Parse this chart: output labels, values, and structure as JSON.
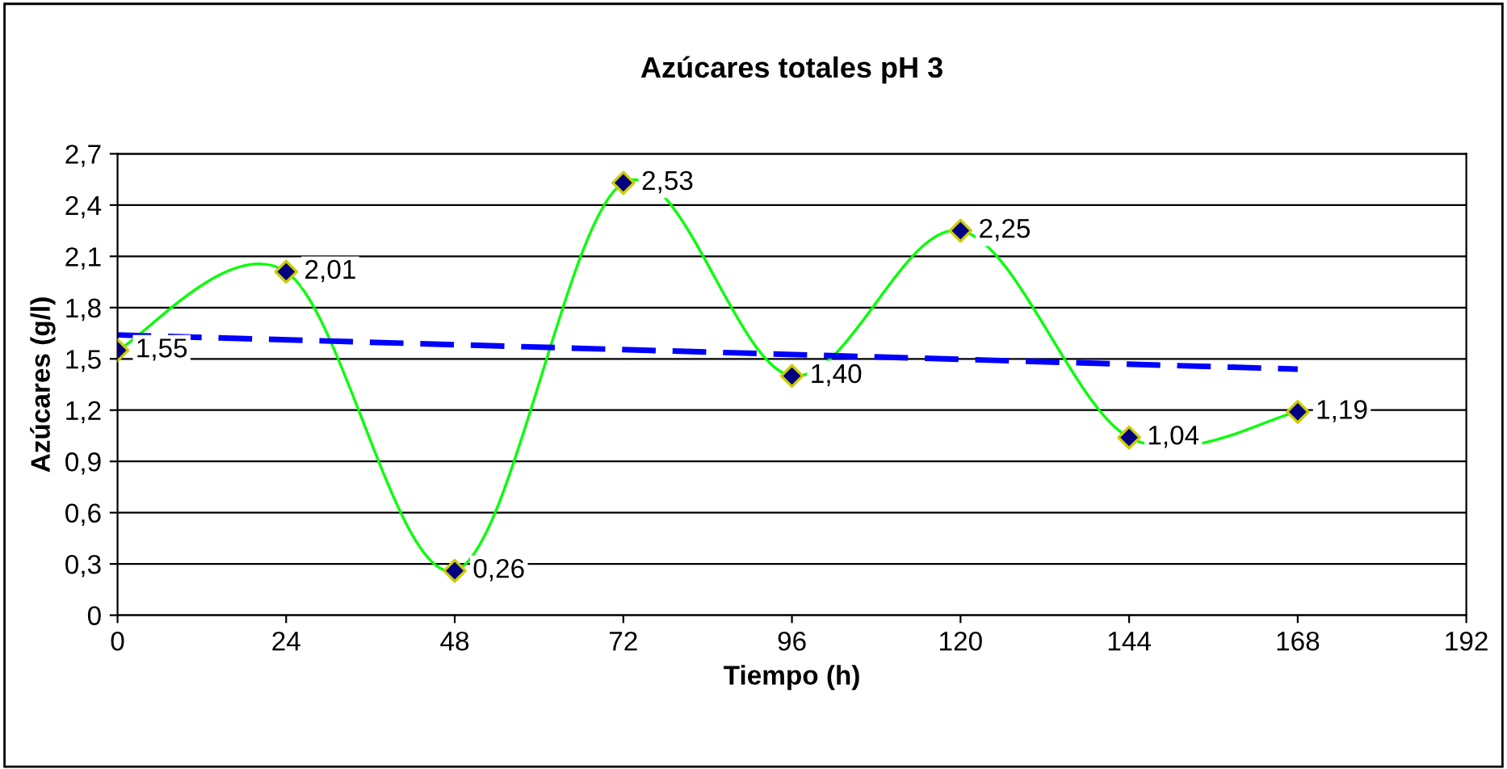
{
  "chart_data": {
    "type": "line",
    "title": "Azúcares totales pH 3",
    "xlabel": "Tiempo (h)",
    "ylabel": "Azúcares (g/l)",
    "x": [
      0,
      24,
      48,
      72,
      96,
      120,
      144,
      168
    ],
    "series": [
      {
        "color": "#00ff00",
        "colors": [
          "#000080",
          "#000080",
          "#000080",
          "#000080",
          "#000080",
          "#000080",
          "#000080",
          "#000080"
        ],
        "marker": "diamond",
        "line_style": "solid",
        "values": [
          1.55,
          2.01,
          0.26,
          2.53,
          1.4,
          2.25,
          1.04,
          1.19
        ],
        "value_labels": [
          "1,55",
          "2,01",
          "0,26",
          "2,53",
          "1,40",
          "2,25",
          "1,04",
          "1,19"
        ]
      },
      {
        "color": "#0000ff",
        "marker": "none",
        "line_style": "dashed",
        "x": [
          0,
          168
        ],
        "values": [
          1.64,
          1.44
        ]
      }
    ],
    "xlim": [
      0,
      192
    ],
    "xticks": [
      0,
      24,
      48,
      72,
      96,
      120,
      144,
      168,
      192
    ],
    "ylim": [
      0,
      2.7
    ],
    "yticks": [
      0,
      {
        "value": 0.3,
        "label": "0,3"
      },
      {
        "value": 0.6,
        "label": "0,6"
      },
      {
        "value": 0.9,
        "label": "0,9"
      },
      {
        "value": 1.2,
        "label": "1,2"
      },
      {
        "value": 1.5,
        "label": "1,5"
      },
      {
        "value": 1.8,
        "label": "1,8"
      },
      {
        "value": 2.1,
        "label": "2,1"
      },
      {
        "value": 2.4,
        "label": "2,4"
      },
      {
        "value": 2.7,
        "label": "2,7"
      }
    ],
    "grid": "y",
    "legend": false
  }
}
